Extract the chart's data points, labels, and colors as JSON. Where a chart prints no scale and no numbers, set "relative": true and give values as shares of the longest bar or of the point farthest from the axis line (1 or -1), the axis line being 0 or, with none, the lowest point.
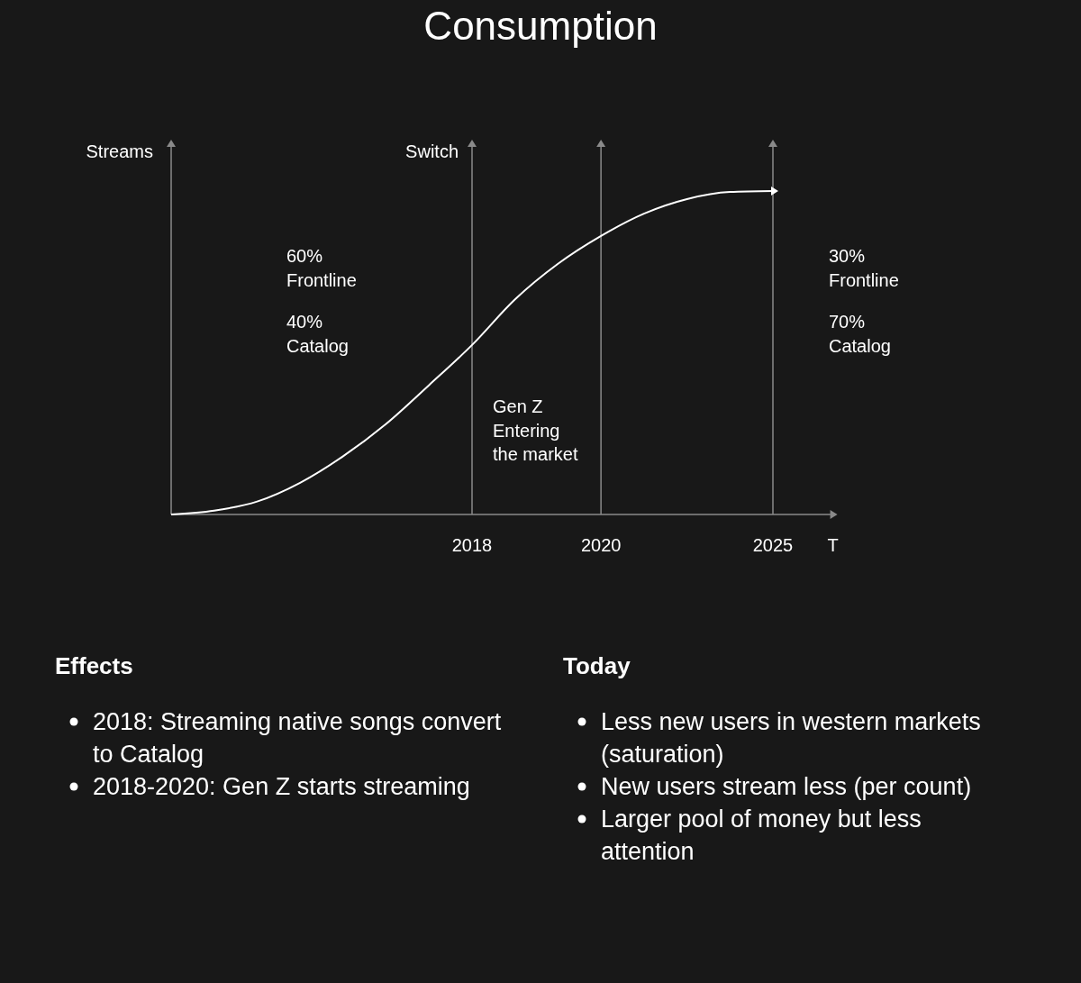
{
  "chart_data": {
    "type": "line",
    "title": "Consumption",
    "xlabel": "T",
    "ylabel": "Streams",
    "relative": true,
    "categories": [
      null,
      null,
      null,
      null,
      null,
      null,
      null,
      "2018",
      null,
      null,
      "2020",
      null,
      null,
      null,
      "2025"
    ],
    "series": [
      {
        "color": "#ffffff",
        "values": [
          0,
          0.012,
          0.04,
          0.098,
          0.18,
          0.28,
          0.4,
          0.524,
          0.665,
          0.775,
          0.861,
          0.93,
          0.975,
          0.997,
          1.0
        ]
      }
    ],
    "ref_lines": [
      {
        "axis": "x",
        "value": "2018",
        "label": "Switch",
        "color": "#8a8a8a"
      },
      {
        "axis": "x",
        "value": "2020",
        "label": null,
        "color": "#8a8a8a"
      },
      {
        "axis": "x",
        "value": "2025",
        "label": null,
        "color": "#8a8a8a"
      }
    ],
    "annotations": [
      "60%\nFrontline",
      "40%\nCatalog",
      "Gen Z\nEntering\nthe market",
      "30%\nFrontline",
      "70%\nCatalog",
      "Effects",
      "2018: Streaming native songs convert to Catalog",
      "2018-2020: Gen Z starts streaming",
      "Today",
      "Less new users in western markets (saturation)",
      "New users stream less (per count)",
      "Larger pool of money but less attention"
    ]
  }
}
